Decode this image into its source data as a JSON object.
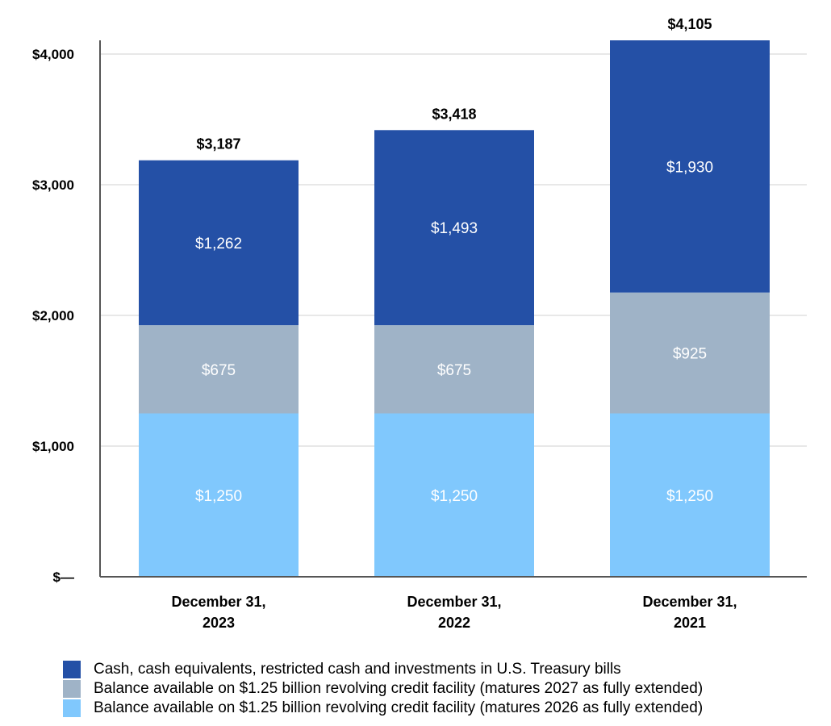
{
  "chart_data": {
    "type": "bar",
    "stacked": true,
    "categories": [
      [
        "December 31,",
        "2023"
      ],
      [
        "December 31,",
        "2022"
      ],
      [
        "December 31,",
        "2021"
      ]
    ],
    "series": [
      {
        "name": "Balance available on $1.25 billion revolving credit facility (matures 2026 as fully extended)",
        "values": [
          1250,
          1250,
          1250
        ],
        "labels": [
          "$1,250",
          "$1,250",
          "$1,250"
        ],
        "color": "#80c8fd"
      },
      {
        "name": "Balance available on $1.25 billion revolving credit facility (matures 2027 as fully extended)",
        "values": [
          675,
          675,
          925
        ],
        "labels": [
          "$675",
          "$675",
          "$925"
        ],
        "color": "#9fb3c7"
      },
      {
        "name": "Cash, cash equivalents, restricted cash and investments in U.S. Treasury bills",
        "values": [
          1262,
          1493,
          1930
        ],
        "labels": [
          "$1,262",
          "$1,493",
          "$1,930"
        ],
        "color": "#2450a6"
      }
    ],
    "totals": [
      3187,
      3418,
      4105
    ],
    "total_labels": [
      "$3,187",
      "$3,418",
      "$4,105"
    ],
    "ylim": [
      0,
      4105
    ],
    "yticks": [
      0,
      1000,
      2000,
      3000,
      4000
    ],
    "ytick_labels": [
      "$—",
      "$1,000",
      "$2,000",
      "$3,000",
      "$4,000"
    ],
    "grid": true,
    "legend_position": "bottom",
    "legend_order": [
      2,
      1,
      0
    ]
  },
  "colors": {
    "axis": "#555555",
    "grid": "#e0e0e0"
  }
}
